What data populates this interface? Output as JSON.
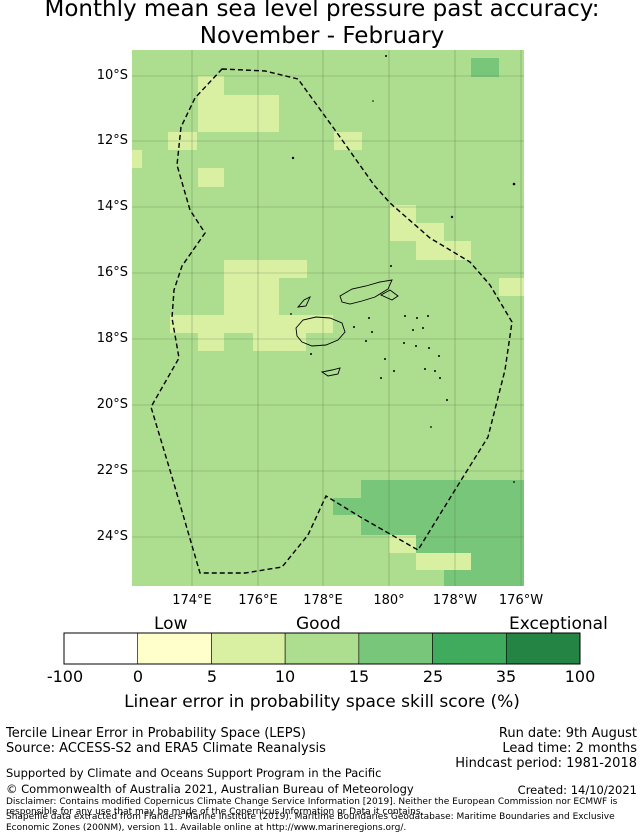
{
  "title_line1": "Monthly mean sea level pressure past accuracy:",
  "title_line2": "November - February",
  "map": {
    "lat_ticks": [
      "10°S",
      "12°S",
      "14°S",
      "16°S",
      "18°S",
      "20°S",
      "22°S",
      "24°S"
    ],
    "lon_ticks": [
      "174°E",
      "176°E",
      "178°E",
      "180°",
      "178°W",
      "176°W"
    ]
  },
  "colorbar": {
    "category_labels": [
      "Low",
      "Good",
      "Exceptional"
    ],
    "ticks": [
      "-100",
      "0",
      "5",
      "10",
      "15",
      "25",
      "35",
      "100"
    ],
    "colors": [
      "#ffffff",
      "#ffffcc",
      "#d9f0a3",
      "#addd8e",
      "#78c679",
      "#41ab5d",
      "#238443"
    ],
    "label": "Linear error in probability space skill score (%)"
  },
  "info": {
    "leps": "Tercile Linear Error in Probability Space (LEPS)",
    "source": "Source: ACCESS-S2 and ERA5 Climate Reanalysis",
    "run_date": "Run date: 9th August",
    "lead_time": "Lead time: 2 months",
    "hindcast": "Hindcast period: 1981-2018",
    "support": "Supported by Climate and Oceans Support Program in the Pacific",
    "copyright": "© Commonwealth of Australia 2021, Australian Bureau of Meteorology",
    "created": "Created: 14/10/2021",
    "disclaimer1": "Disclaimer: Contains modified Copernicus Climate Change Service Information [2019]. Neither the European Commission nor ECMWF is",
    "disclaimer2": "responsible for any use that may be made of the Copernicus Information or Data it contains.",
    "shapefile1": "Shapefile data extracted from Flanders Marine Institute (2019). Maritime Boundaries Geodatabase: Maritime Boundaries and Exclusive",
    "shapefile2": "Economic Zones (200NM), version 11. Available online at http://www.marineregions.org/."
  }
}
